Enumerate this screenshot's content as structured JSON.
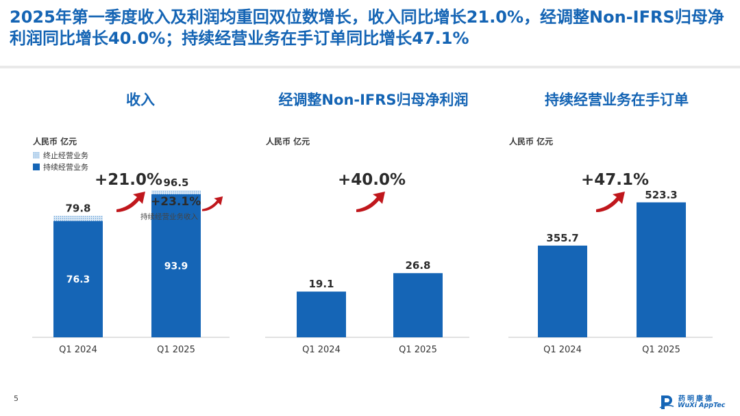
{
  "headline": "2025年第一季度收入及利润均重回双位数增长，收入同比增长21.0%，经调整Non-IFRS归母净利润同比增长40.0%；持续经营业务在手订单同比增长47.1%",
  "page_number": "5",
  "logo": {
    "chinese": "药明康德",
    "english": "WuXi AppTec"
  },
  "colors": {
    "title": "#1464b4",
    "bar": "#1565b6",
    "arrow": "#c0171c",
    "axis": "#cfcfcf"
  },
  "panels": [
    {
      "title": "收入",
      "unit": "人民币 亿元",
      "legend": [
        {
          "label": "终止经营业务",
          "style": "hatched"
        },
        {
          "label": "持续经营业务",
          "style": "solid"
        }
      ],
      "growth": "+21.0%",
      "sub_growth": "+23.1%",
      "sub_growth_label": "持续经营业务收入"
    },
    {
      "title": "经调整Non-IFRS归母净利润",
      "unit": "人民币 亿元",
      "growth": "+40.0%"
    },
    {
      "title": "持续经营业务在手订单",
      "unit": "人民币 亿元",
      "growth": "+47.1%"
    }
  ],
  "chart_data": [
    {
      "type": "bar",
      "stacked": true,
      "title": "收入",
      "ylabel": "人民币 亿元",
      "categories": [
        "Q1 2024",
        "Q1 2025"
      ],
      "series": [
        {
          "name": "持续经营业务",
          "values": [
            76.3,
            93.9
          ],
          "labels": [
            "76.3",
            "93.9"
          ]
        },
        {
          "name": "终止经营业务",
          "values": [
            3.5,
            2.6
          ]
        }
      ],
      "totals": [
        79.8,
        96.5
      ],
      "total_labels": [
        "79.8",
        "96.5"
      ],
      "ylim": [
        0,
        110
      ],
      "legend": "top-left"
    },
    {
      "type": "bar",
      "title": "经调整Non-IFRS归母净利润",
      "ylabel": "人民币 亿元",
      "categories": [
        "Q1 2024",
        "Q1 2025"
      ],
      "series": [
        {
          "values": [
            19.1,
            26.8
          ]
        }
      ],
      "total_labels": [
        "19.1",
        "26.8"
      ],
      "ylim": [
        0,
        70
      ]
    },
    {
      "type": "bar",
      "title": "持续经营业务在手订单",
      "ylabel": "人民币 亿元",
      "categories": [
        "Q1 2024",
        "Q1 2025"
      ],
      "series": [
        {
          "values": [
            355.7,
            523.3
          ]
        }
      ],
      "total_labels": [
        "355.7",
        "523.3"
      ],
      "ylim": [
        0,
        650
      ]
    }
  ]
}
